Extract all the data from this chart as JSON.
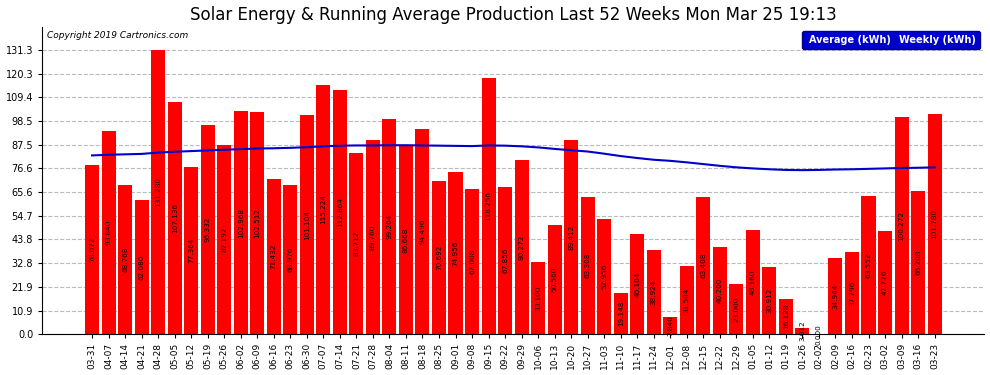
{
  "title": "Solar Energy & Running Average Production Last 52 Weeks Mon Mar 25 19:13",
  "copyright": "Copyright 2019 Cartronics.com",
  "categories": [
    "03-31",
    "04-07",
    "04-14",
    "04-21",
    "04-28",
    "05-05",
    "05-12",
    "05-19",
    "05-26",
    "06-02",
    "06-09",
    "06-16",
    "06-23",
    "06-30",
    "07-07",
    "07-14",
    "07-21",
    "07-28",
    "08-04",
    "08-11",
    "08-18",
    "08-25",
    "09-01",
    "09-08",
    "09-15",
    "09-22",
    "09-29",
    "10-06",
    "10-13",
    "10-20",
    "10-27",
    "11-03",
    "11-10",
    "11-17",
    "11-24",
    "12-01",
    "12-08",
    "12-15",
    "12-22",
    "12-29",
    "01-05",
    "01-12",
    "01-19",
    "01-26",
    "02-02",
    "02-09",
    "02-16",
    "02-23",
    "03-02",
    "03-09",
    "03-16",
    "03-23"
  ],
  "weekly_values": [
    78.072,
    93.84,
    68.768,
    62.08,
    131.28,
    107.136,
    77.364,
    96.332,
    87.192,
    102.968,
    102.512,
    71.432,
    68.976,
    101.104,
    115.224,
    112.864,
    83.712,
    89.76,
    99.204,
    86.668,
    94.496,
    70.692,
    74.956,
    67.008,
    118.256,
    67.856,
    80.272,
    33.1,
    50.56,
    89.412,
    63.308,
    52.956,
    19.148,
    46.104,
    38.924,
    7.84,
    31.584,
    63.408,
    40.2,
    23.0,
    48.16,
    30.912,
    16.128,
    3.012,
    0.0,
    34.944,
    37.796,
    63.552,
    47.776,
    100.272,
    66.208,
    101.78
  ],
  "average_values": [
    82.5,
    82.8,
    83.0,
    83.2,
    83.8,
    84.2,
    84.5,
    84.8,
    85.1,
    85.4,
    85.7,
    85.8,
    86.0,
    86.3,
    86.7,
    87.0,
    87.1,
    87.1,
    87.2,
    87.2,
    87.1,
    87.0,
    86.9,
    86.8,
    87.1,
    87.0,
    86.7,
    86.2,
    85.5,
    84.9,
    84.3,
    83.3,
    82.2,
    81.3,
    80.5,
    80.0,
    79.3,
    78.5,
    77.7,
    77.0,
    76.5,
    76.1,
    75.8,
    75.7,
    75.8,
    76.0,
    76.1,
    76.3,
    76.5,
    76.7,
    76.8,
    77.0
  ],
  "bar_color": "#ff0000",
  "line_color": "#0000cc",
  "bg_color": "#ffffff",
  "grid_color": "#bbbbbb",
  "ylim": [
    0.0,
    142.0
  ],
  "yticks": [
    0.0,
    10.9,
    21.9,
    32.8,
    43.8,
    54.7,
    65.6,
    76.6,
    87.5,
    98.5,
    109.4,
    120.3,
    131.3
  ],
  "title_fontsize": 12,
  "bar_label_fontsize": 5.2,
  "tick_fontsize": 7,
  "legend_avg_color": "#0000cc",
  "legend_weekly_color": "#ff0000"
}
